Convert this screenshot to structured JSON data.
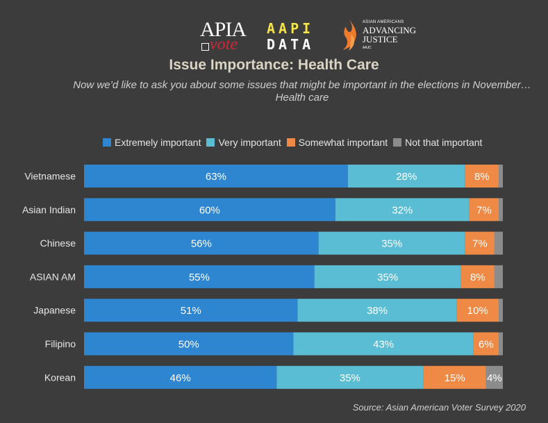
{
  "logos": {
    "apia_vote": {
      "line1": "APIA",
      "line2": "vote"
    },
    "aapi_data": {
      "line1": "AAPI",
      "line2": "DATA"
    },
    "aajc": {
      "line1": "ASIAN AMERICANS",
      "line2": "ADVANCING",
      "line3": "JUSTICE",
      "line4": "AAJC"
    }
  },
  "colors": {
    "background": "#3c3c3c",
    "extremely": "#2e86d0",
    "very": "#5bbdd4",
    "somewhat": "#ee8a45",
    "not": "#8c8c8c"
  },
  "source": "Source: Asian American Voter Survey 2020",
  "chart_data": {
    "type": "bar",
    "orientation": "horizontal",
    "stacked": true,
    "title": "Issue Importance: Health Care",
    "subtitle": "Now  we’d like to ask you about some issues that might be important in the elections in November…Health care",
    "legend_position": "top",
    "categories": [
      "Vietnamese",
      "Asian Indian",
      "Chinese",
      "ASIAN AM",
      "Japanese",
      "Filipino",
      "Korean"
    ],
    "series": [
      {
        "name": "Extremely important",
        "values": [
          63,
          60,
          56,
          55,
          51,
          50,
          46
        ],
        "labels": [
          "63%",
          "60%",
          "56%",
          "55%",
          "51%",
          "50%",
          "46%"
        ]
      },
      {
        "name": "Very important",
        "values": [
          28,
          32,
          35,
          35,
          38,
          43,
          35
        ],
        "labels": [
          "28%",
          "32%",
          "35%",
          "35%",
          "38%",
          "43%",
          "35%"
        ]
      },
      {
        "name": "Somewhat important",
        "values": [
          8,
          7,
          7,
          8,
          10,
          6,
          15
        ],
        "labels": [
          "8%",
          "7%",
          "7%",
          "8%",
          "10%",
          "6%",
          "15%"
        ]
      },
      {
        "name": "Not that important",
        "values": [
          1,
          1,
          2,
          2,
          1,
          1,
          4
        ],
        "labels": [
          "",
          "",
          "",
          "",
          "",
          "",
          "4%"
        ]
      }
    ],
    "xlim": [
      0,
      100
    ],
    "grid": false
  }
}
